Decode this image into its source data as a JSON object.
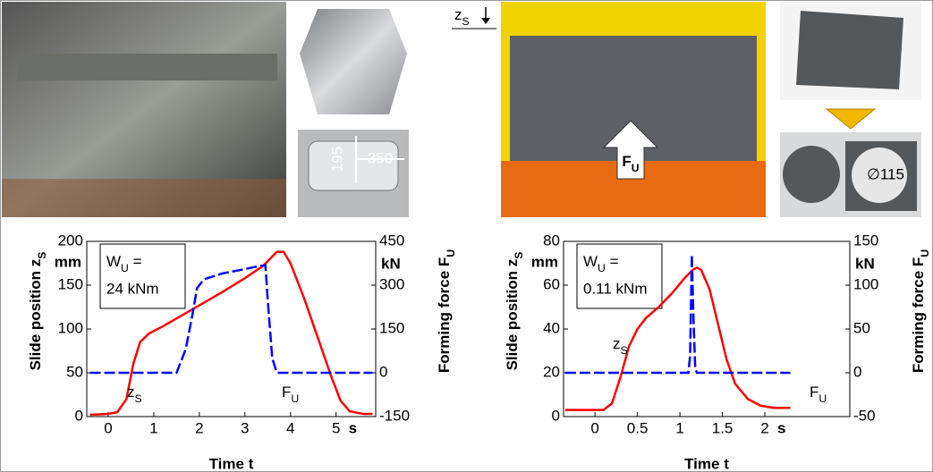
{
  "photos": {
    "dim_height": "195",
    "dim_width": "350",
    "diameter": "∅115",
    "force": {
      "main": "F",
      "sub": "U"
    },
    "slide": {
      "main": "z",
      "sub": "S"
    }
  },
  "chart_data": [
    {
      "type": "line",
      "y_label": {
        "main": "Slide position z",
        "sub": "S"
      },
      "y_unit": "mm",
      "y2_label": {
        "main": "Forming force F",
        "sub": "U"
      },
      "y2_unit": "kN",
      "x_label": "Time t",
      "x_unit": "s",
      "annotation": {
        "line1": {
          "main": "W",
          "sub": "U",
          "rest": " ="
        },
        "line2": "24 kNm"
      },
      "xlim": [
        -0.47,
        5.87
      ],
      "xticks": [
        0,
        1,
        2,
        3,
        4,
        5
      ],
      "ylim": [
        0,
        200
      ],
      "yticks": [
        0,
        50,
        100,
        150,
        200
      ],
      "y2lim": [
        -150,
        450
      ],
      "y2ticks": [
        -150,
        0,
        150,
        300,
        450
      ],
      "series": [
        {
          "label": {
            "main": "z",
            "sub": "S"
          },
          "color": "#ff0000",
          "dashed": false,
          "x": [
            -0.4,
            0,
            0.2,
            0.4,
            0.55,
            0.7,
            0.9,
            1.2,
            1.6,
            2,
            2.5,
            3,
            3.4,
            3.7,
            3.85,
            4.0,
            4.3,
            4.6,
            4.9,
            5.1,
            5.3,
            5.6,
            5.8
          ],
          "values": [
            2,
            3,
            5,
            20,
            60,
            85,
            95,
            103,
            115,
            127,
            142,
            158,
            172,
            188,
            188,
            175,
            135,
            90,
            45,
            18,
            6,
            3,
            3
          ]
        },
        {
          "label": {
            "main": "F",
            "sub": "U"
          },
          "color": "#0000ff",
          "dashed": true,
          "axis": "y2",
          "x": [
            -0.4,
            1.5,
            1.7,
            1.85,
            1.95,
            2.1,
            2.5,
            3,
            3.3,
            3.45,
            3.5,
            3.6,
            3.7,
            5.8
          ],
          "values": [
            0,
            0,
            80,
            200,
            290,
            320,
            340,
            355,
            365,
            368,
            250,
            50,
            0,
            0
          ]
        }
      ]
    },
    {
      "type": "line",
      "y_label": {
        "main": "Slide position z",
        "sub": "S"
      },
      "y_unit": "mm",
      "y2_label": {
        "main": "Forming force F",
        "sub": "U"
      },
      "y2_unit": "kN",
      "x_label": "Time t",
      "x_unit": "s",
      "annotation": {
        "line1": {
          "main": "W",
          "sub": "U",
          "rest": " ="
        },
        "line2": "0.11 kNm"
      },
      "xlim": [
        -0.37,
        3.0
      ],
      "xticks": [
        0,
        0.5,
        1,
        1.5,
        2
      ],
      "ylim": [
        0,
        80
      ],
      "yticks": [
        0,
        20,
        40,
        60,
        80
      ],
      "y2lim": [
        -50,
        150
      ],
      "y2ticks": [
        -50,
        0,
        50,
        100,
        150
      ],
      "series": [
        {
          "label": {
            "main": "z",
            "sub": "S"
          },
          "color": "#ff0000",
          "dashed": false,
          "x": [
            -0.35,
            0.1,
            0.2,
            0.3,
            0.4,
            0.5,
            0.6,
            0.75,
            0.9,
            1.05,
            1.15,
            1.2,
            1.25,
            1.35,
            1.45,
            1.55,
            1.65,
            1.8,
            1.95,
            2.1,
            2.3
          ],
          "values": [
            3,
            3,
            6,
            18,
            32,
            40,
            45,
            50,
            56,
            63,
            67,
            68,
            67,
            58,
            42,
            26,
            15,
            8,
            5,
            4,
            4
          ]
        },
        {
          "label": {
            "main": "F",
            "sub": "U"
          },
          "color": "#0000ff",
          "dashed": true,
          "axis": "y2",
          "x": [
            -0.35,
            1.1,
            1.12,
            1.14,
            1.16,
            1.18,
            1.2,
            2.3
          ],
          "values": [
            0,
            0,
            20,
            135,
            60,
            5,
            0,
            0
          ]
        }
      ]
    }
  ]
}
